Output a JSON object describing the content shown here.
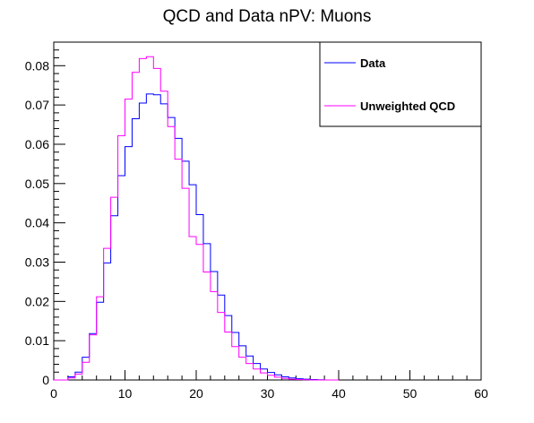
{
  "chart_data": {
    "type": "line",
    "title": "QCD and Data nPV: Muons",
    "xlabel": "",
    "ylabel": "",
    "xlim": [
      0,
      60
    ],
    "ylim": [
      0,
      0.086
    ],
    "bin_width": 1,
    "x_ticks": [
      "0",
      "10",
      "20",
      "30",
      "40",
      "50",
      "60"
    ],
    "y_ticks": [
      "0",
      "0.01",
      "0.02",
      "0.03",
      "0.04",
      "0.05",
      "0.06",
      "0.07",
      "0.08"
    ],
    "grid": false,
    "legend_position": "top-right",
    "series": [
      {
        "name": "Data",
        "color": "#0000ff",
        "bin_low_edges": [
          0,
          1,
          2,
          3,
          4,
          5,
          6,
          7,
          8,
          9,
          10,
          11,
          12,
          13,
          14,
          15,
          16,
          17,
          18,
          19,
          20,
          21,
          22,
          23,
          24,
          25,
          26,
          27,
          28,
          29,
          30,
          31,
          32,
          33,
          34,
          35,
          36,
          37,
          38,
          39
        ],
        "values": [
          0,
          0,
          0.0008,
          0.002,
          0.0058,
          0.0118,
          0.0198,
          0.0298,
          0.0418,
          0.052,
          0.0594,
          0.0665,
          0.0705,
          0.0728,
          0.0726,
          0.0703,
          0.0668,
          0.0615,
          0.0557,
          0.0497,
          0.0421,
          0.0347,
          0.0276,
          0.0216,
          0.0164,
          0.0121,
          0.0087,
          0.0061,
          0.0042,
          0.0028,
          0.0019,
          0.0013,
          0.0008,
          0.0005,
          0.0003,
          0.0002,
          0.0001,
          5e-05,
          0,
          0
        ]
      },
      {
        "name": "Unweighted QCD",
        "color": "#ff00ff",
        "bin_low_edges": [
          0,
          1,
          2,
          3,
          4,
          5,
          6,
          7,
          8,
          9,
          10,
          11,
          12,
          13,
          14,
          15,
          16,
          17,
          18,
          19,
          20,
          21,
          22,
          23,
          24,
          25,
          26,
          27,
          28,
          29,
          30,
          31,
          32,
          33,
          34,
          35,
          36,
          37,
          38,
          39
        ],
        "values": [
          0,
          0,
          0.0005,
          0.0015,
          0.0045,
          0.0115,
          0.0212,
          0.0335,
          0.0465,
          0.0622,
          0.0715,
          0.0783,
          0.0818,
          0.0823,
          0.0793,
          0.0735,
          0.0645,
          0.0562,
          0.0488,
          0.0365,
          0.0345,
          0.0275,
          0.0225,
          0.0172,
          0.0122,
          0.0085,
          0.0058,
          0.0042,
          0.0028,
          0.0018,
          0.0012,
          0.0007,
          0.0004,
          0.0002,
          0.0001,
          5e-05,
          0,
          0,
          0,
          0
        ]
      }
    ]
  }
}
